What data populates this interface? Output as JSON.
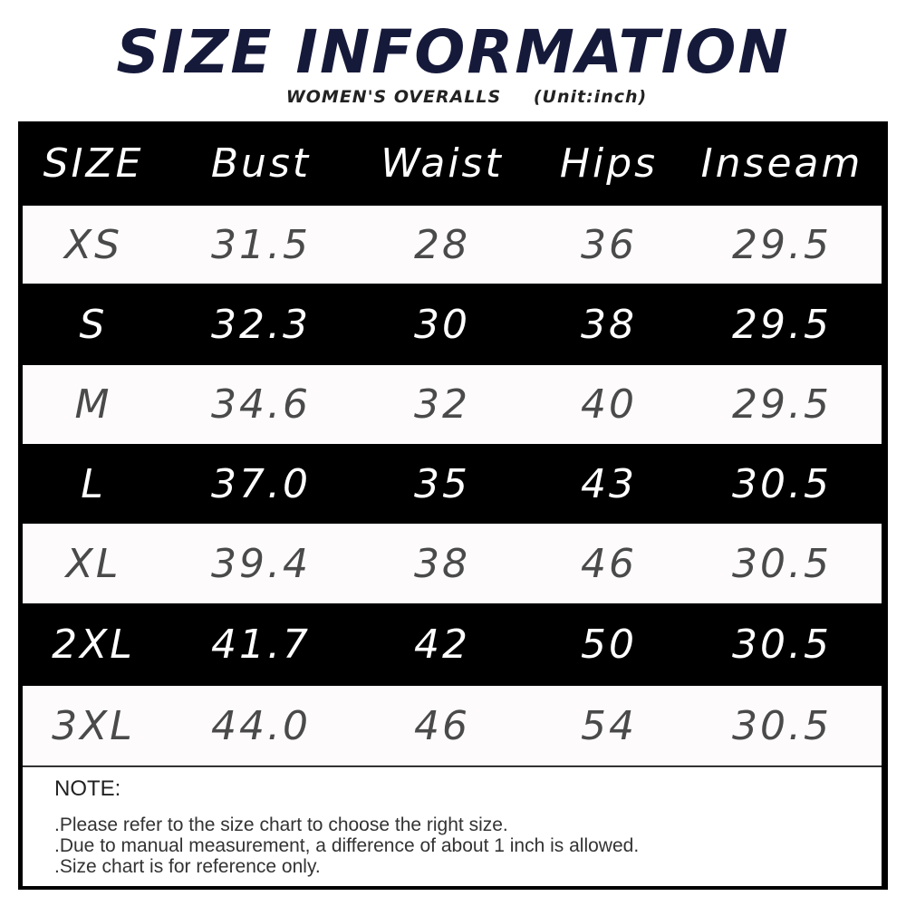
{
  "title": "SIZE INFORMATION",
  "subtitle": {
    "product": "WOMEN'S OVERALLS",
    "unit": "(Unit:inch)"
  },
  "table": {
    "headers": [
      "SIZE",
      "Bust",
      "Waist",
      "Hips",
      "Inseam"
    ],
    "rows": [
      [
        "XS",
        "31.5",
        "28",
        "36",
        "29.5"
      ],
      [
        "S",
        "32.3",
        "30",
        "38",
        "29.5"
      ],
      [
        "M",
        "34.6",
        "32",
        "40",
        "29.5"
      ],
      [
        "L",
        "37.0",
        "35",
        "43",
        "30.5"
      ],
      [
        "XL",
        "39.4",
        "38",
        "46",
        "30.5"
      ],
      [
        "2XL",
        "41.7",
        "42",
        "50",
        "30.5"
      ],
      [
        "3XL",
        "44.0",
        "46",
        "54",
        "30.5"
      ]
    ]
  },
  "note": {
    "title": "NOTE:",
    "lines": [
      ".Please refer to the size chart to choose the right size.",
      ".Due to manual measurement, a difference of about 1 inch is allowed.",
      ".Size chart is for reference only."
    ]
  },
  "colors": {
    "title": "#161a3a",
    "dark_row": "#000000",
    "light_row": "#fdfbfc"
  }
}
